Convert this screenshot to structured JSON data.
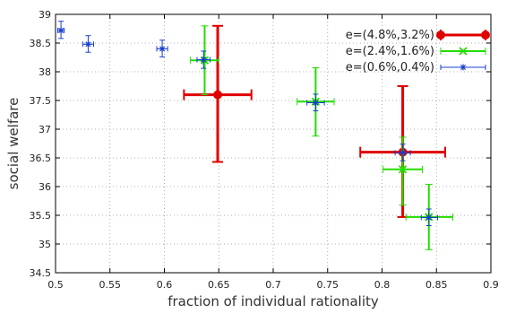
{
  "chart_data": {
    "type": "scatter",
    "title": "",
    "xlabel": "fraction of individual rationality",
    "ylabel": "social welfare",
    "xlim": [
      0.5,
      0.9
    ],
    "ylim": [
      34.5,
      39
    ],
    "xticks": [
      "0.5",
      "0.55",
      "0.6",
      "0.65",
      "0.7",
      "0.75",
      "0.8",
      "0.85",
      "0.9"
    ],
    "yticks": [
      "34.5",
      "35",
      "35.5",
      "36",
      "36.5",
      "37",
      "37.5",
      "38",
      "38.5",
      "39"
    ],
    "grid": true,
    "legend_position": "top-right",
    "series": [
      {
        "name": "e=(4.8%,3.2%)",
        "color": "#e00000",
        "marker": "circle",
        "points": [
          {
            "x": 0.649,
            "y": 37.6,
            "x_err": [
              0.618,
              0.68
            ],
            "y_err": [
              36.43,
              38.8
            ]
          },
          {
            "x": 0.819,
            "y": 36.6,
            "x_err": [
              0.78,
              0.858
            ],
            "y_err": [
              35.47,
              37.75
            ]
          }
        ]
      },
      {
        "name": "e=(2.4%,1.6%)",
        "color": "#22dd00",
        "marker": "x",
        "points": [
          {
            "x": 0.637,
            "y": 38.2,
            "x_err": [
              0.624,
              0.65
            ],
            "y_err": [
              37.6,
              38.8
            ]
          },
          {
            "x": 0.739,
            "y": 37.48,
            "x_err": [
              0.722,
              0.756
            ],
            "y_err": [
              36.88,
              38.07
            ]
          },
          {
            "x": 0.819,
            "y": 36.3,
            "x_err": [
              0.801,
              0.837
            ],
            "y_err": [
              35.68,
              36.86
            ]
          },
          {
            "x": 0.843,
            "y": 35.47,
            "x_err": [
              0.822,
              0.865
            ],
            "y_err": [
              34.9,
              36.04
            ]
          }
        ]
      },
      {
        "name": "e=(0.6%,0.4%)",
        "color": "#1a3fcc",
        "marker": "star",
        "points": [
          {
            "x": 0.505,
            "y": 38.72,
            "x_err": [
              0.502,
              0.508
            ],
            "y_err": [
              38.58,
              38.88
            ]
          },
          {
            "x": 0.53,
            "y": 38.48,
            "x_err": [
              0.525,
              0.535
            ],
            "y_err": [
              38.34,
              38.63
            ]
          },
          {
            "x": 0.598,
            "y": 38.4,
            "x_err": [
              0.593,
              0.603
            ],
            "y_err": [
              38.26,
              38.55
            ]
          },
          {
            "x": 0.636,
            "y": 38.21,
            "x_err": [
              0.63,
              0.642
            ],
            "y_err": [
              38.06,
              38.36
            ]
          },
          {
            "x": 0.739,
            "y": 37.46,
            "x_err": [
              0.731,
              0.747
            ],
            "y_err": [
              37.32,
              37.61
            ]
          },
          {
            "x": 0.819,
            "y": 36.59,
            "x_err": [
              0.812,
              0.826
            ],
            "y_err": [
              36.45,
              36.74
            ]
          },
          {
            "x": 0.843,
            "y": 35.46,
            "x_err": [
              0.836,
              0.851
            ],
            "y_err": [
              35.32,
              35.61
            ]
          }
        ]
      }
    ]
  }
}
